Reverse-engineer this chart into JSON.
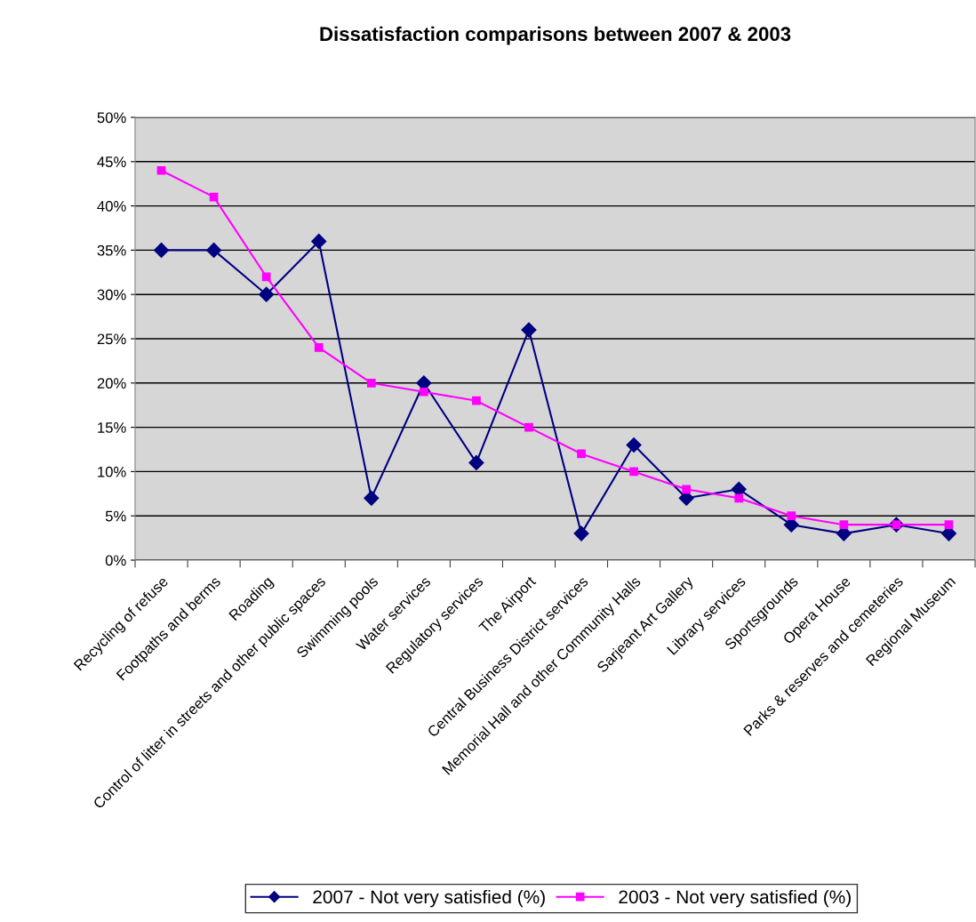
{
  "chart_data": {
    "type": "line",
    "title": "Dissatisfaction comparisons between 2007 & 2003",
    "categories": [
      "Recycling of refuse",
      "Footpaths and berms",
      "Roading",
      "Control of litter in streets and other public spaces",
      "Swimming pools",
      "Water services",
      "Regulatory services",
      "The Airport",
      "Central Business District services",
      "Memorial Hall and other Community Halls",
      "Sarjeant Art Gallery",
      "Library services",
      "Sportsgrounds",
      "Opera House",
      "Parks & reserves and cemeteries",
      "Regional Museum"
    ],
    "series": [
      {
        "name": "2007 - Not very satisfied (%)",
        "color": "#000080",
        "marker": "diamond",
        "values": [
          35,
          35,
          30,
          36,
          7,
          20,
          11,
          26,
          3,
          13,
          7,
          8,
          4,
          3,
          4,
          3
        ]
      },
      {
        "name": "2003 - Not very satisfied (%)",
        "color": "#ff00ff",
        "marker": "square",
        "values": [
          44,
          41,
          32,
          24,
          20,
          19,
          18,
          15,
          12,
          10,
          8,
          7,
          5,
          4,
          4,
          4
        ]
      }
    ],
    "ylim": [
      0,
      50
    ],
    "yticks": [
      {
        "value": 0,
        "label": "0%"
      },
      {
        "value": 5,
        "label": "5%"
      },
      {
        "value": 10,
        "label": "10%"
      },
      {
        "value": 15,
        "label": "15%"
      },
      {
        "value": 20,
        "label": "20%"
      },
      {
        "value": 25,
        "label": "25%"
      },
      {
        "value": 30,
        "label": "30%"
      },
      {
        "value": 35,
        "label": "35%"
      },
      {
        "value": 40,
        "label": "40%"
      },
      {
        "value": 45,
        "label": "45%"
      },
      {
        "value": 50,
        "label": "50%"
      }
    ],
    "grid": "y",
    "legend": "bottom",
    "line_style": "solid"
  }
}
